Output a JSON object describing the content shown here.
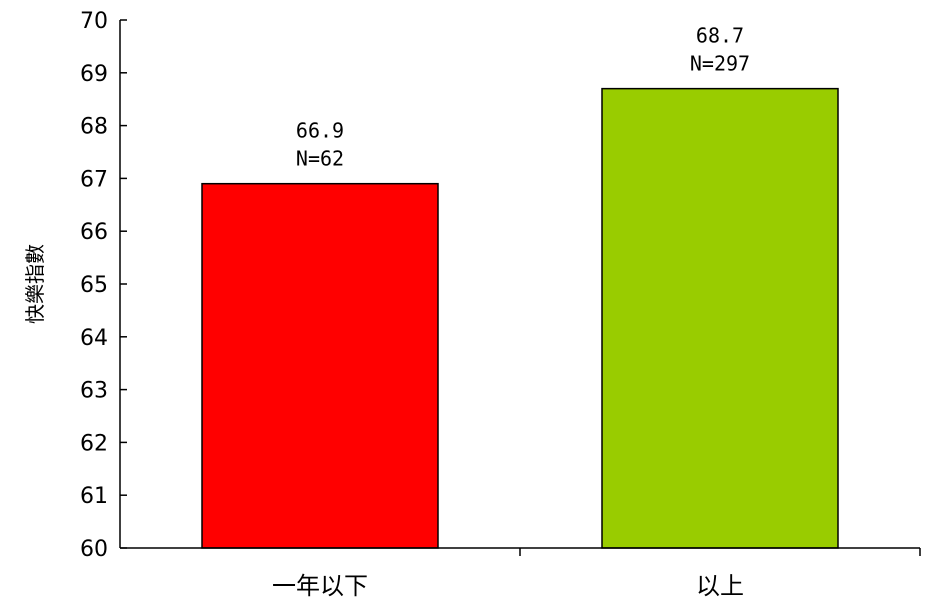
{
  "chart_data": {
    "type": "bar",
    "title": "",
    "xlabel": "",
    "ylabel": "快樂指數",
    "categories": [
      "一年以下",
      "以上"
    ],
    "values": [
      66.9,
      68.7
    ],
    "value_labels": [
      "66.9",
      "68.7"
    ],
    "n_labels": [
      "N=62",
      "N=297"
    ],
    "ylim": [
      60,
      70
    ],
    "yticks": [
      60,
      61,
      62,
      63,
      64,
      65,
      66,
      67,
      68,
      69,
      70
    ],
    "grid": false,
    "legend": "none",
    "colors": [
      "#ff0000",
      "#99cc00"
    ],
    "border_color": "#000000"
  }
}
